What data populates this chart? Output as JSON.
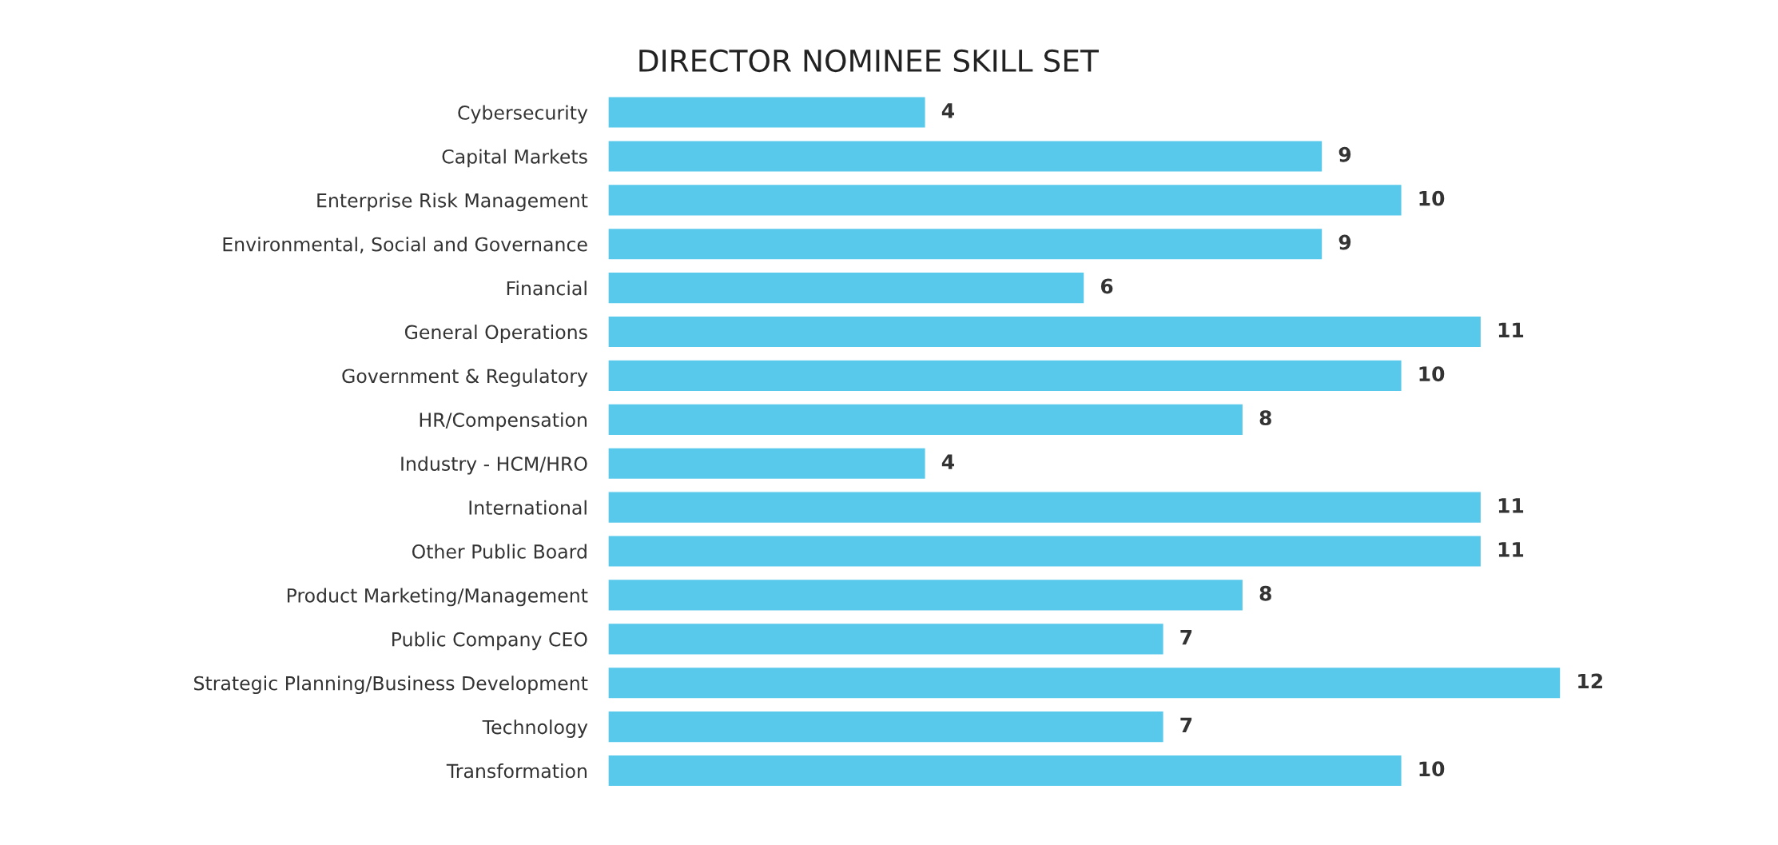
{
  "chart_data": {
    "type": "bar",
    "orientation": "horizontal",
    "title": "DIRECTOR NOMINEE SKILL SET",
    "categories": [
      "Cybersecurity",
      "Capital Markets",
      "Enterprise Risk Management",
      "Environmental, Social and Governance",
      "Financial",
      "General Operations",
      "Government & Regulatory",
      "HR/Compensation",
      "Industry - HCM/HRO",
      "International",
      "Other Public Board",
      "Product Marketing/Management",
      "Public Company CEO",
      "Strategic Planning/Business Development",
      "Technology",
      "Transformation"
    ],
    "values": [
      4,
      9,
      10,
      9,
      6,
      11,
      10,
      8,
      4,
      11,
      11,
      8,
      7,
      12,
      7,
      10
    ],
    "color": "#59c9eb",
    "data_labels": true,
    "grid": false,
    "legend": false
  }
}
